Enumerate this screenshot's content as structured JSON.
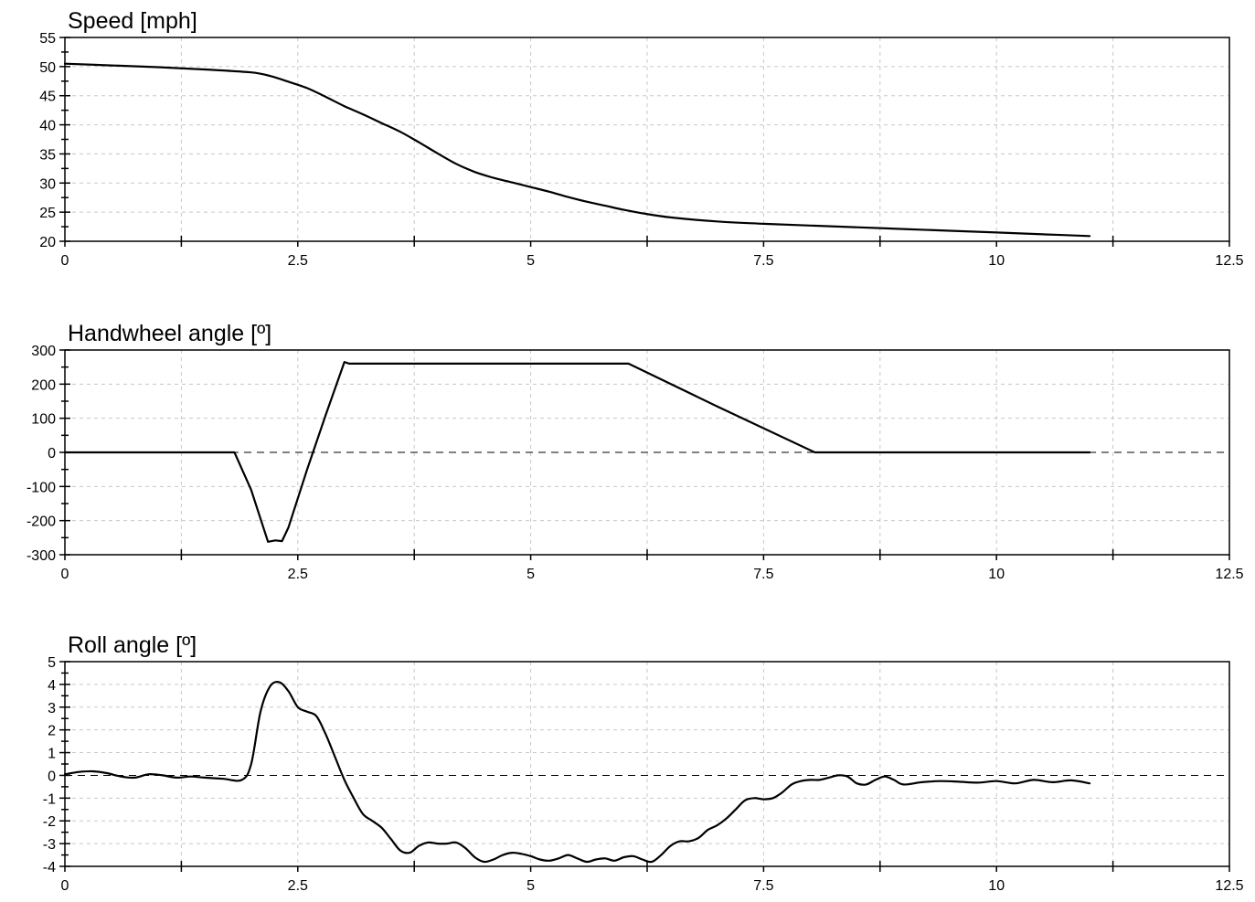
{
  "chart_data": [
    {
      "type": "line",
      "title": "Speed  [mph]",
      "xlim": [
        0,
        12.5
      ],
      "ylim": [
        20,
        55
      ],
      "xticks": [
        0,
        2.5,
        5,
        7.5,
        10,
        12.5
      ],
      "xtick_labels": [
        "0",
        "2.5",
        "5",
        "7.5",
        "10",
        "12.5"
      ],
      "yticks": [
        20,
        25,
        30,
        35,
        40,
        45,
        50,
        55
      ],
      "ytick_labels": [
        "20",
        "25",
        "30",
        "35",
        "40",
        "45",
        "50",
        "55"
      ],
      "zero_line": false,
      "grid": true,
      "series": [
        {
          "x": [
            0,
            0.5,
            1.0,
            1.5,
            2.0,
            2.2,
            2.4,
            2.6,
            2.8,
            3.0,
            3.2,
            3.4,
            3.6,
            3.8,
            4.0,
            4.2,
            4.4,
            4.6,
            4.8,
            5.0,
            5.2,
            5.4,
            5.6,
            5.8,
            6.0,
            6.2,
            6.5,
            7.0,
            7.5,
            8.0,
            8.5,
            9.0,
            9.5,
            10.0,
            10.5,
            11.0
          ],
          "y": [
            50.5,
            50.2,
            49.9,
            49.5,
            49.0,
            48.4,
            47.4,
            46.3,
            44.8,
            43.2,
            41.8,
            40.3,
            38.8,
            37.0,
            35.1,
            33.3,
            31.9,
            30.9,
            30.1,
            29.3,
            28.5,
            27.6,
            26.8,
            26.1,
            25.4,
            24.8,
            24.1,
            23.4,
            23.0,
            22.7,
            22.4,
            22.1,
            21.8,
            21.5,
            21.2,
            20.9
          ]
        }
      ]
    },
    {
      "type": "line",
      "title": "Handwheel angle  [º]",
      "xlim": [
        0,
        12.5
      ],
      "ylim": [
        -300,
        300
      ],
      "xticks": [
        0,
        2.5,
        5,
        7.5,
        10,
        12.5
      ],
      "xtick_labels": [
        "0",
        "2.5",
        "5",
        "7.5",
        "10",
        "12.5"
      ],
      "yticks": [
        -300,
        -200,
        -100,
        0,
        100,
        200,
        300
      ],
      "ytick_labels": [
        "-300",
        "-200",
        "-100",
        "0",
        "100",
        "200",
        "300"
      ],
      "zero_line": true,
      "grid": true,
      "series": [
        {
          "x": [
            0,
            1.82,
            2.0,
            2.18,
            2.26,
            2.33,
            2.4,
            2.6,
            2.8,
            3.0,
            3.05,
            6.05,
            7.0,
            8.05,
            9.0,
            10.0,
            11.0
          ],
          "y": [
            0,
            0,
            -110,
            -262,
            -258,
            -260,
            -220,
            -50,
            110,
            265,
            260,
            260,
            135,
            0,
            0,
            0,
            0
          ]
        }
      ]
    },
    {
      "type": "line",
      "title": "Roll angle  [º]",
      "xlim": [
        0,
        12.5
      ],
      "ylim": [
        -4,
        5
      ],
      "xticks": [
        0,
        2.5,
        5,
        7.5,
        10,
        12.5
      ],
      "xtick_labels": [
        "0",
        "2.5",
        "5",
        "7.5",
        "10",
        "12.5"
      ],
      "yticks": [
        -4,
        -3,
        -2,
        -1,
        0,
        1,
        2,
        3,
        4,
        5
      ],
      "ytick_labels": [
        "-4",
        "-3",
        "-2",
        "-1",
        "0",
        "1",
        "2",
        "3",
        "4",
        "5"
      ],
      "zero_line": true,
      "grid": true,
      "series": [
        {
          "x": [
            0,
            0.15,
            0.3,
            0.45,
            0.6,
            0.75,
            0.9,
            1.05,
            1.2,
            1.35,
            1.5,
            1.7,
            1.9,
            2.0,
            2.1,
            2.2,
            2.3,
            2.4,
            2.5,
            2.6,
            2.7,
            2.8,
            2.9,
            3.0,
            3.1,
            3.2,
            3.3,
            3.4,
            3.5,
            3.6,
            3.7,
            3.8,
            3.9,
            4.0,
            4.1,
            4.2,
            4.3,
            4.4,
            4.5,
            4.6,
            4.7,
            4.8,
            4.9,
            5.0,
            5.1,
            5.2,
            5.3,
            5.4,
            5.5,
            5.6,
            5.7,
            5.8,
            5.9,
            6.0,
            6.1,
            6.2,
            6.3,
            6.4,
            6.5,
            6.6,
            6.7,
            6.8,
            6.9,
            7.0,
            7.1,
            7.2,
            7.3,
            7.4,
            7.5,
            7.6,
            7.7,
            7.8,
            7.9,
            8.0,
            8.1,
            8.2,
            8.3,
            8.4,
            8.5,
            8.6,
            8.7,
            8.8,
            8.9,
            9.0,
            9.2,
            9.4,
            9.6,
            9.8,
            10.0,
            10.2,
            10.4,
            10.6,
            10.8,
            11.0
          ],
          "y": [
            0.05,
            0.15,
            0.18,
            0.1,
            -0.05,
            -0.1,
            0.05,
            0.0,
            -0.1,
            -0.05,
            -0.1,
            -0.15,
            -0.2,
            0.5,
            2.8,
            3.9,
            4.1,
            3.7,
            3.0,
            2.8,
            2.6,
            1.8,
            0.8,
            -0.2,
            -1.0,
            -1.7,
            -2.0,
            -2.3,
            -2.8,
            -3.3,
            -3.4,
            -3.1,
            -2.95,
            -3.0,
            -3.0,
            -2.95,
            -3.2,
            -3.6,
            -3.8,
            -3.7,
            -3.5,
            -3.4,
            -3.45,
            -3.55,
            -3.7,
            -3.75,
            -3.65,
            -3.5,
            -3.65,
            -3.8,
            -3.7,
            -3.65,
            -3.75,
            -3.6,
            -3.55,
            -3.7,
            -3.8,
            -3.5,
            -3.1,
            -2.9,
            -2.9,
            -2.75,
            -2.4,
            -2.2,
            -1.9,
            -1.5,
            -1.1,
            -1.0,
            -1.05,
            -1.0,
            -0.75,
            -0.4,
            -0.25,
            -0.2,
            -0.2,
            -0.1,
            0.0,
            -0.05,
            -0.35,
            -0.4,
            -0.2,
            -0.05,
            -0.2,
            -0.4,
            -0.3,
            -0.25,
            -0.28,
            -0.32,
            -0.25,
            -0.35,
            -0.2,
            -0.3,
            -0.22,
            -0.35
          ]
        }
      ]
    }
  ]
}
